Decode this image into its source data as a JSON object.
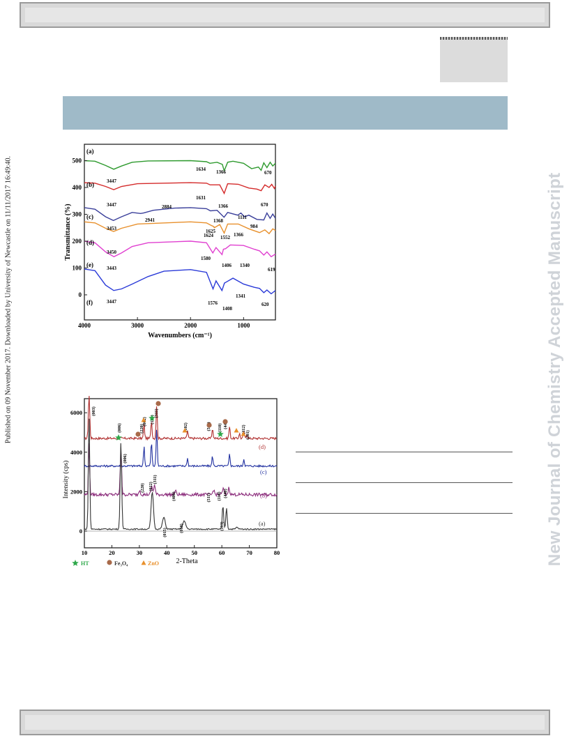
{
  "page": {
    "side_watermark": "New Journal of Chemistry Accepted Manuscript",
    "published_note": "Published on 09 November 2017. Downloaded by University of Newcastle on 11/11/2017 16:49:40."
  },
  "ftir": {
    "ylabel": "Transmittance (%)",
    "xlabel": "Wavenumbers (cm⁻¹)",
    "x_ticks": [
      "4000",
      "3000",
      "2000",
      "1000"
    ],
    "y_ticks": [
      "500",
      "400",
      "300",
      "200",
      "100",
      "0"
    ],
    "curve_labels": [
      "(a)",
      "(b)",
      "(c)",
      "(d)",
      "(e)",
      "(f)"
    ],
    "colors": [
      "#2e9a2e",
      "#d42a2a",
      "#3a3f9a",
      "#e8902c",
      "#e040d0",
      "#2a3ad8"
    ],
    "peak_labels": [
      "3447",
      "1634",
      "1366",
      "670",
      "3447",
      "1631",
      "1366",
      "670",
      "3453",
      "2941",
      "2884",
      "1625",
      "1111",
      "984",
      "1368",
      "1624",
      "1552",
      "1366",
      "3450",
      "3443",
      "1580",
      "1406",
      "1340",
      "619",
      "3447",
      "1576",
      "1408",
      "1341",
      "620"
    ]
  },
  "xrd": {
    "ylabel": "Intensity (cps)",
    "xlabel": "2-Theta",
    "x_ticks": [
      "10",
      "20",
      "30",
      "40",
      "50",
      "60",
      "70",
      "80"
    ],
    "y_ticks": [
      "6000",
      "4000",
      "2000",
      "0"
    ],
    "curve_labels": [
      "(d)",
      "(c)",
      "(b)",
      "(a)"
    ],
    "colors": [
      "#b03030",
      "#2030a0",
      "#8a2a7a",
      "#333333"
    ],
    "hkl_labels": [
      "(003)",
      "(006)",
      "(220)",
      "(002)",
      "(100)",
      "(311)",
      "(102)",
      "(511)",
      "(110)",
      "(440)",
      "(112)",
      "(201)",
      "(006)",
      "(220)",
      "(012)",
      "(311)",
      "(400)",
      "(511)",
      "(110)",
      "(440)",
      "(015)",
      "(018)",
      "(113)"
    ],
    "legend": {
      "ht": "HT",
      "fe": "Fe₃O₄",
      "zno": "ZnO"
    },
    "marker_colors": {
      "ht": "#2ea84a",
      "fe": "#a86a4a",
      "zno": "#e8902c"
    }
  }
}
